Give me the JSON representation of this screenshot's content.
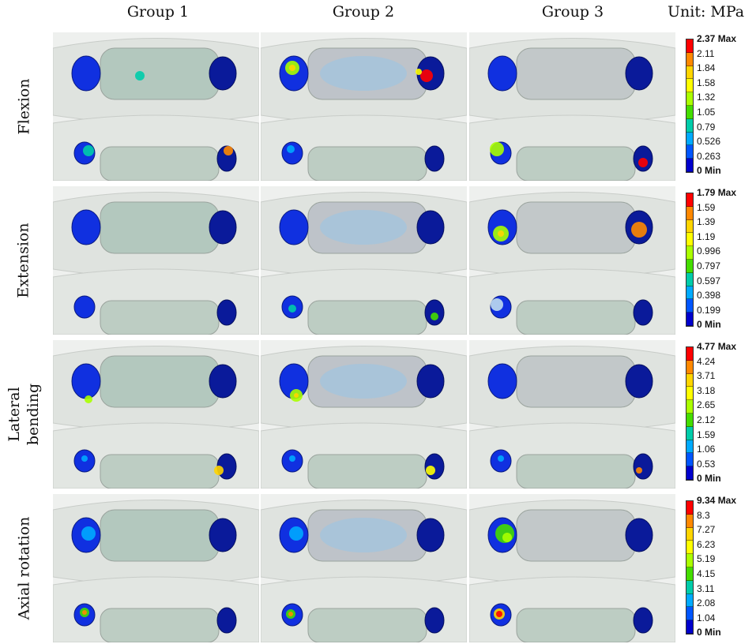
{
  "columns": [
    "Group 1",
    "Group 2",
    "Group 3"
  ],
  "unit_label": "Unit: MPa",
  "rows": [
    {
      "label_lines": [
        "Flexion"
      ],
      "legend": [
        "2.37 Max",
        "2.11",
        "1.84",
        "1.58",
        "1.32",
        "1.05",
        "0.79",
        "0.526",
        "0.263",
        "0 Min"
      ]
    },
    {
      "label_lines": [
        "Extension"
      ],
      "legend": [
        "1.79 Max",
        "1.59",
        "1.39",
        "1.19",
        "0.996",
        "0.797",
        "0.597",
        "0.398",
        "0.199",
        "0 Min"
      ]
    },
    {
      "label_lines": [
        "Lateral",
        "bending"
      ],
      "legend": [
        "4.77 Max",
        "4.24",
        "3.71",
        "3.18",
        "2.65",
        "2.12",
        "1.59",
        "1.06",
        "0.53",
        "0 Min"
      ]
    },
    {
      "label_lines": [
        "Axial rotation"
      ],
      "legend": [
        "9.34 Max",
        "8.3",
        "7.27",
        "6.23",
        "5.19",
        "4.15",
        "3.11",
        "2.08",
        "1.04",
        "0 Min"
      ]
    }
  ],
  "colors": {
    "scale": [
      "#ff0000",
      "#ff8800",
      "#ffd500",
      "#ffff00",
      "#aaff00",
      "#44dd00",
      "#00ccaa",
      "#00aaff",
      "#0055ff",
      "#0000cc"
    ]
  }
}
